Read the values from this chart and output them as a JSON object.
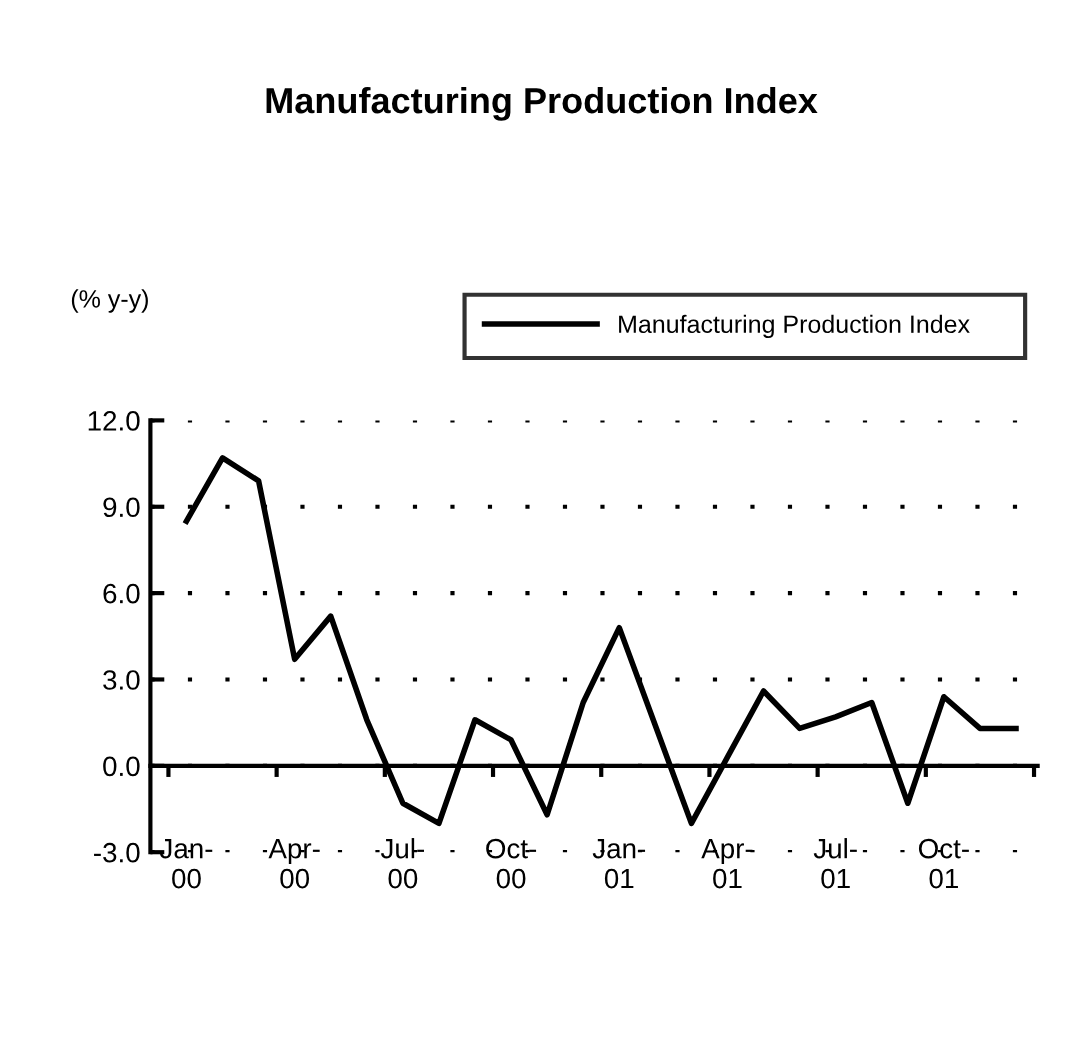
{
  "chart_data": {
    "type": "line",
    "title": "Manufacturing Production Index",
    "ylabel": "(% y-y)",
    "categories": [
      "Jan-\n00",
      null,
      null,
      "Apr-\n00",
      null,
      null,
      "Jul-\n00",
      null,
      null,
      "Oct-\n00",
      null,
      null,
      "Jan-\n01",
      null,
      null,
      "Apr-\n01",
      null,
      null,
      "Jul-\n01",
      null,
      null,
      "Oct-\n01",
      null,
      null
    ],
    "series": [
      {
        "name": "Manufacturing Production Index",
        "color": "#000000",
        "values": [
          8.5,
          10.7,
          9.9,
          3.7,
          5.2,
          1.6,
          -1.3,
          -2.0,
          1.6,
          0.9,
          -1.7,
          2.2,
          4.8,
          1.4,
          -2.0,
          0.3,
          2.6,
          1.3,
          1.7,
          2.2,
          -1.3,
          2.4,
          1.3,
          1.3
        ]
      }
    ],
    "ylim": [
      -3,
      12
    ],
    "yticks": [
      {
        "value": -3,
        "label": "-3.0"
      },
      {
        "value": 0,
        "label": "0.0"
      },
      {
        "value": 3,
        "label": "3.0"
      },
      {
        "value": 6,
        "label": "6.0"
      },
      {
        "value": 9,
        "label": "9.0"
      },
      {
        "value": 12,
        "label": "12.0"
      }
    ],
    "grid": "y",
    "legend": "top right",
    "marker": "none",
    "line_style": "solid"
  }
}
